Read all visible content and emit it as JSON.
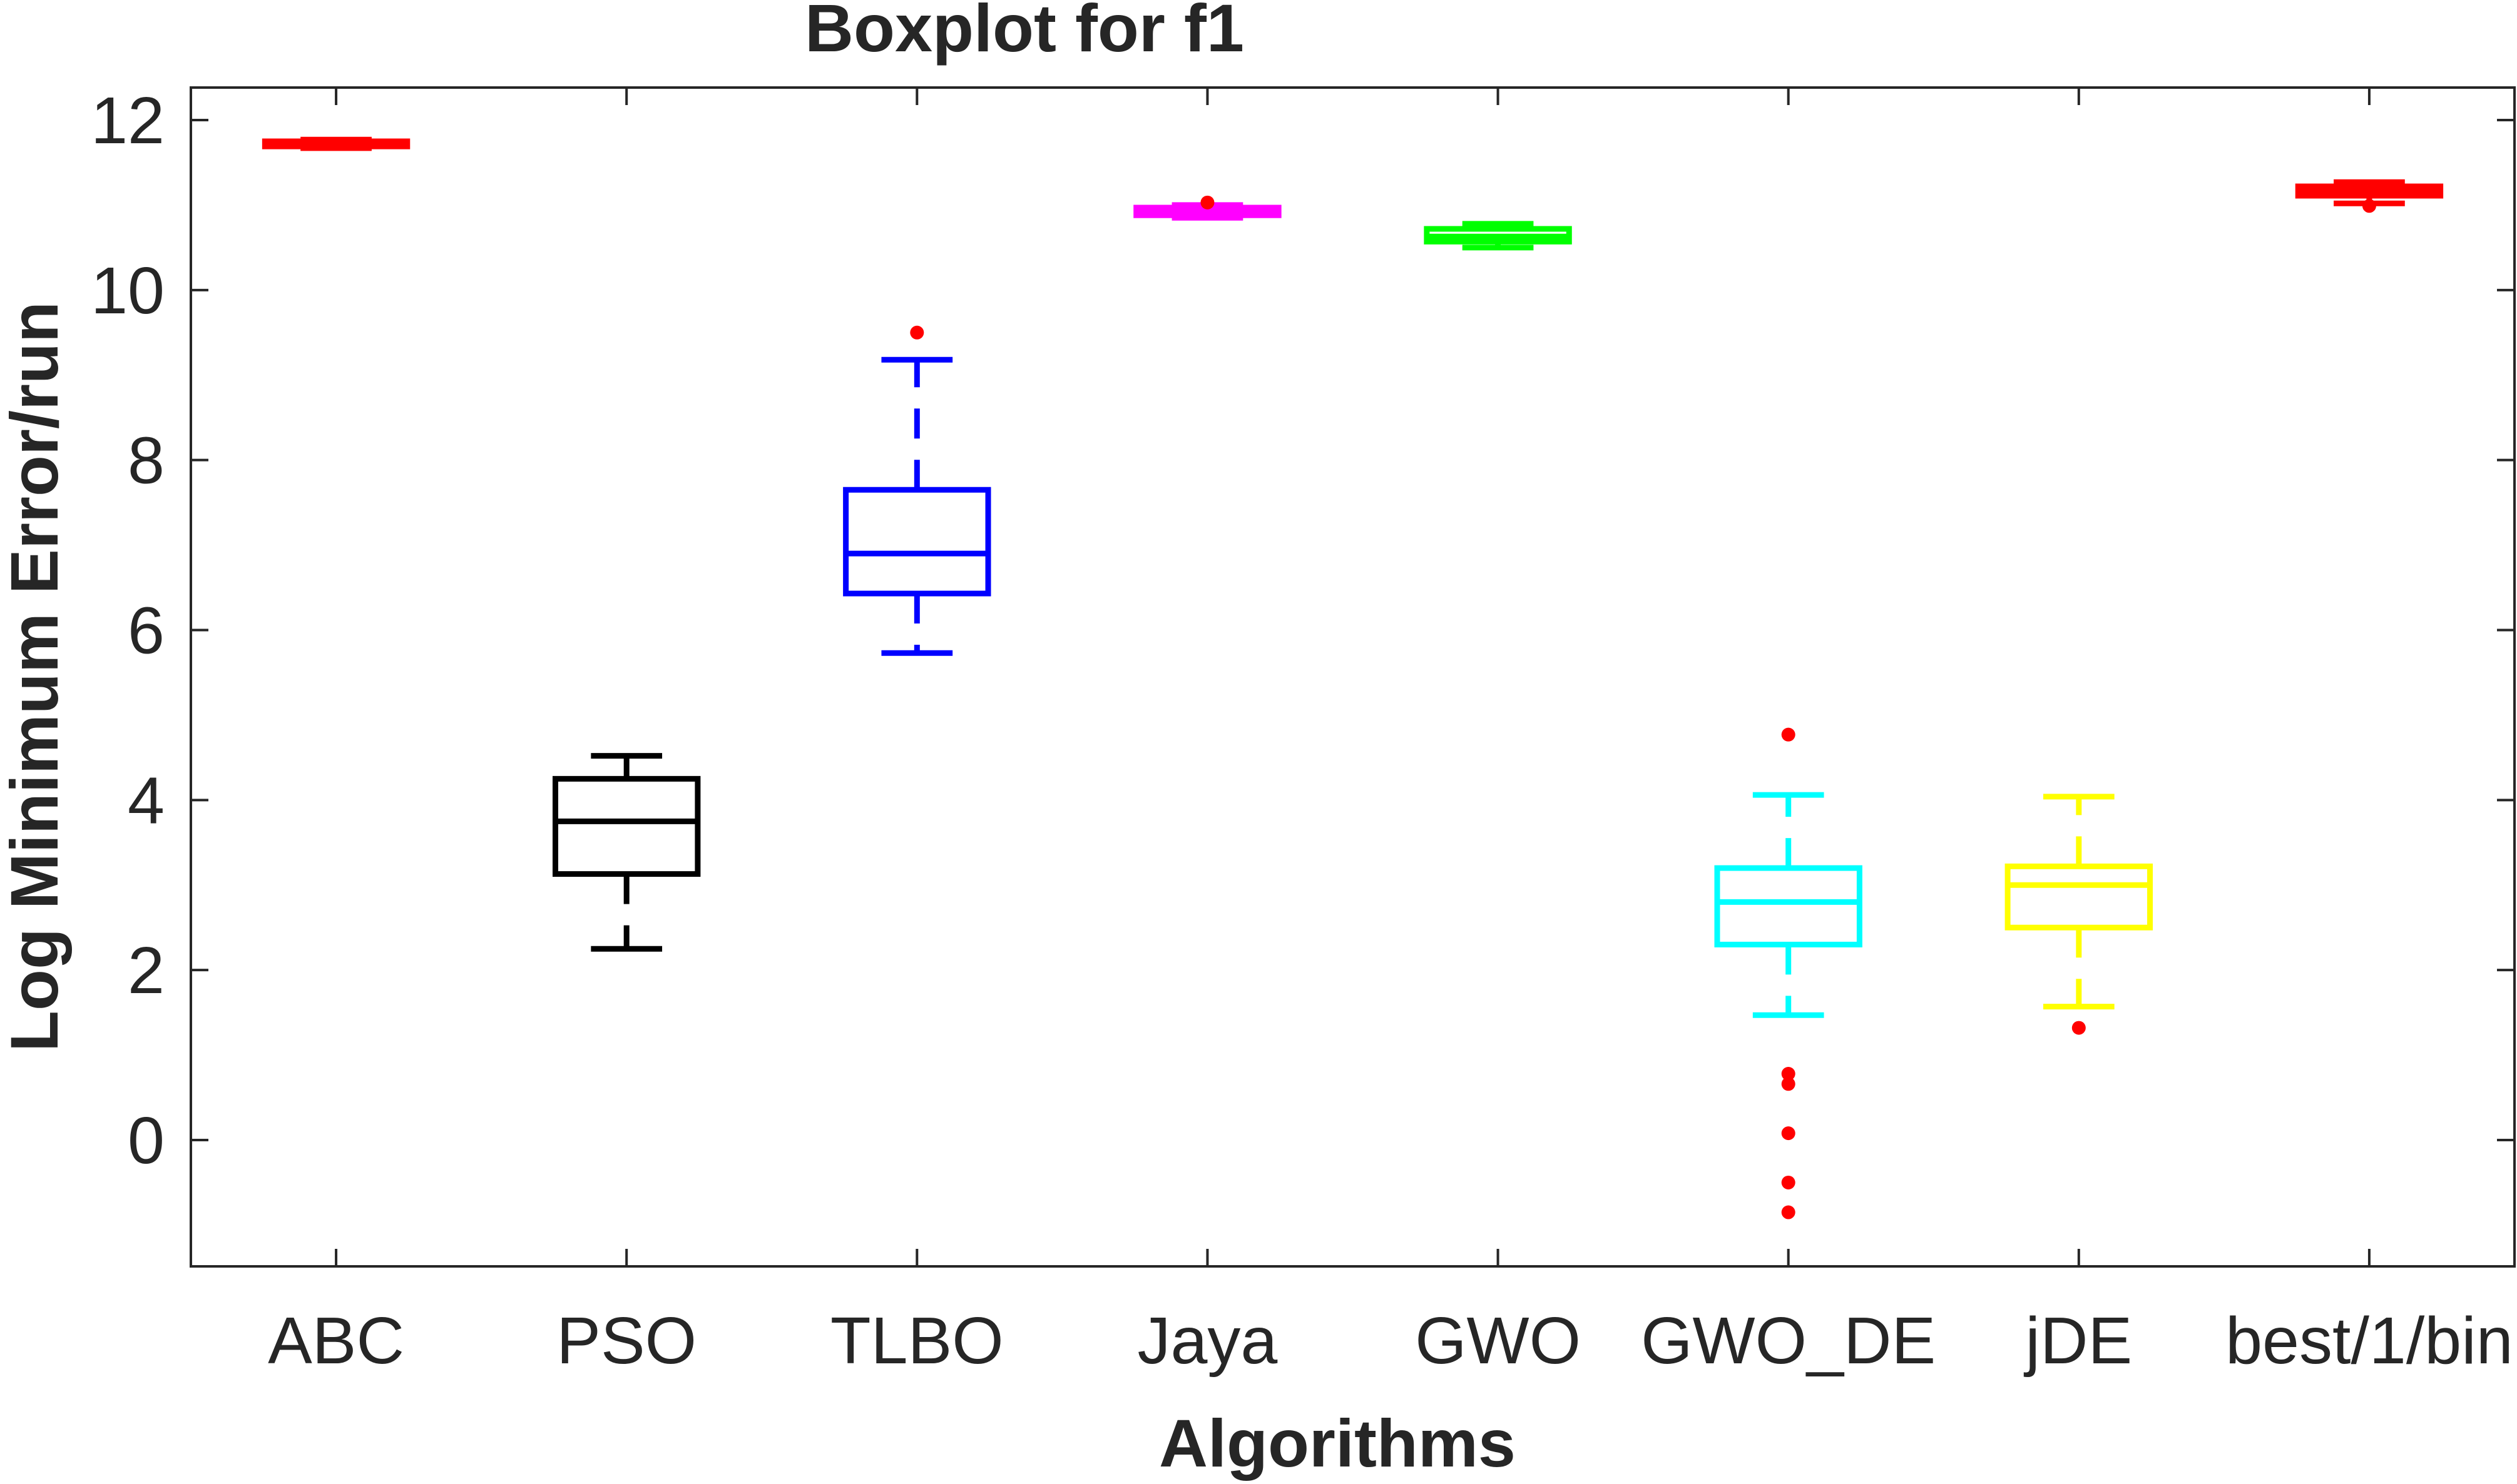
{
  "chart_data": {
    "type": "boxplot",
    "title": "Boxplot for f1",
    "xlabel": "Algorithms",
    "ylabel": "Log Minimum Error/run",
    "ylim": [
      -1.5,
      12.4
    ],
    "yticks": [
      0,
      2,
      4,
      6,
      8,
      10,
      12
    ],
    "grid": false,
    "outlier_color": "#ff0000",
    "series": [
      {
        "name": "ABC",
        "color": "#ff0000",
        "whisker_low": 11.67,
        "q1": 11.69,
        "median": 11.72,
        "q3": 11.75,
        "whisker_high": 11.77,
        "outliers": []
      },
      {
        "name": "PSO",
        "color": "#000000",
        "whisker_low": 2.25,
        "q1": 3.13,
        "median": 3.75,
        "q3": 4.25,
        "whisker_high": 4.52,
        "outliers": []
      },
      {
        "name": "TLBO",
        "color": "#0000ff",
        "whisker_low": 5.73,
        "q1": 6.43,
        "median": 6.9,
        "q3": 7.65,
        "whisker_high": 9.18,
        "outliers": [
          9.5
        ]
      },
      {
        "name": "Jaya",
        "color": "#ff00ff",
        "whisker_low": 10.85,
        "q1": 10.88,
        "median": 10.93,
        "q3": 10.97,
        "whisker_high": 11.0,
        "outliers": [
          11.03
        ]
      },
      {
        "name": "GWO",
        "color": "#00ff00",
        "whisker_low": 10.5,
        "q1": 10.57,
        "median": 10.63,
        "q3": 10.72,
        "whisker_high": 10.78,
        "outliers": []
      },
      {
        "name": "GWO_DE",
        "color": "#00ffff",
        "whisker_low": 1.47,
        "q1": 2.3,
        "median": 2.8,
        "q3": 3.2,
        "whisker_high": 4.06,
        "outliers": [
          4.77,
          0.78,
          0.66,
          0.08,
          -0.5,
          -0.85
        ]
      },
      {
        "name": "jDE",
        "color": "#ffff00",
        "whisker_low": 1.57,
        "q1": 2.5,
        "median": 3.0,
        "q3": 3.22,
        "whisker_high": 4.04,
        "outliers": [
          1.32
        ]
      },
      {
        "name": "best/1/bin",
        "color": "#ff0000",
        "whisker_low": 11.02,
        "q1": 11.11,
        "median": 11.17,
        "q3": 11.22,
        "whisker_high": 11.27,
        "outliers": [
          10.99
        ]
      }
    ]
  }
}
